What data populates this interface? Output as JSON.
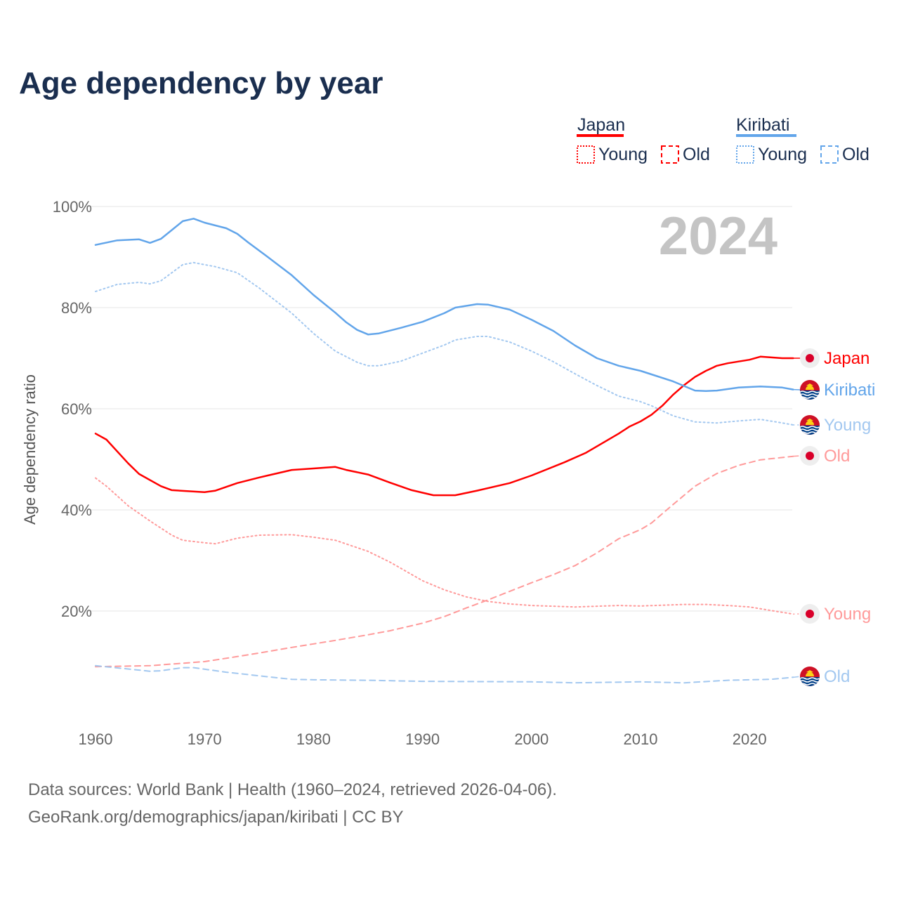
{
  "title": "Age dependency by year",
  "legend": {
    "groups": [
      {
        "name": "Japan",
        "color": "#ff0000",
        "items": [
          "Young",
          "Old"
        ]
      },
      {
        "name": "Kiribati",
        "color": "#62a5ea",
        "items": [
          "Young",
          "Old"
        ]
      }
    ]
  },
  "year_display": "2024",
  "footer": {
    "line1": "Data sources: World Bank | Health (1960–2024, retrieved 2026-04-06).",
    "line2": "GeoRank.org/demographics/japan/kiribati | CC BY"
  },
  "chart_data": {
    "type": "line",
    "title": "Age dependency by year",
    "xlabel": "",
    "ylabel": "Age dependency ratio",
    "xlim": [
      1960,
      2024
    ],
    "ylim": [
      0,
      100
    ],
    "x_ticks": [
      "1960",
      "1970",
      "1980",
      "1990",
      "2000",
      "2010",
      "2020"
    ],
    "y_ticks": [
      "20%",
      "40%",
      "60%",
      "80%",
      "100%"
    ],
    "grid": true,
    "legend_position": "top-right",
    "series": [
      {
        "name": "Japan",
        "end_label": "Japan",
        "style": "solid",
        "color": "#ff0000",
        "country": "japan",
        "points": [
          [
            1960,
            55.1
          ],
          [
            1961,
            53.9
          ],
          [
            1963,
            49.2
          ],
          [
            1964,
            47.1
          ],
          [
            1966,
            44.7
          ],
          [
            1967,
            43.9
          ],
          [
            1970,
            43.5
          ],
          [
            1971,
            43.8
          ],
          [
            1973,
            45.3
          ],
          [
            1975,
            46.4
          ],
          [
            1978,
            47.9
          ],
          [
            1980,
            48.2
          ],
          [
            1982,
            48.5
          ],
          [
            1983,
            47.9
          ],
          [
            1985,
            47.0
          ],
          [
            1987,
            45.4
          ],
          [
            1989,
            43.9
          ],
          [
            1991,
            42.9
          ],
          [
            1993,
            42.9
          ],
          [
            1995,
            43.8
          ],
          [
            1998,
            45.3
          ],
          [
            2000,
            46.8
          ],
          [
            2003,
            49.4
          ],
          [
            2005,
            51.3
          ],
          [
            2008,
            55.1
          ],
          [
            2009,
            56.5
          ],
          [
            2010,
            57.5
          ],
          [
            2011,
            58.8
          ],
          [
            2012,
            60.6
          ],
          [
            2013,
            62.8
          ],
          [
            2014,
            64.7
          ],
          [
            2015,
            66.3
          ],
          [
            2016,
            67.5
          ],
          [
            2017,
            68.5
          ],
          [
            2018,
            69.0
          ],
          [
            2020,
            69.7
          ],
          [
            2021,
            70.3
          ],
          [
            2023,
            70.0
          ],
          [
            2024,
            70.0
          ]
        ]
      },
      {
        "name": "Kiribati",
        "end_label": "Kiribati",
        "style": "solid",
        "color": "#62a5ea",
        "country": "kiribati",
        "points": [
          [
            1960,
            92.4
          ],
          [
            1962,
            93.3
          ],
          [
            1964,
            93.5
          ],
          [
            1965,
            92.8
          ],
          [
            1966,
            93.6
          ],
          [
            1968,
            97.1
          ],
          [
            1969,
            97.6
          ],
          [
            1970,
            96.8
          ],
          [
            1972,
            95.7
          ],
          [
            1973,
            94.6
          ],
          [
            1974,
            92.9
          ],
          [
            1976,
            89.7
          ],
          [
            1978,
            86.4
          ],
          [
            1980,
            82.5
          ],
          [
            1982,
            79.0
          ],
          [
            1983,
            77.1
          ],
          [
            1984,
            75.6
          ],
          [
            1985,
            74.7
          ],
          [
            1986,
            74.9
          ],
          [
            1988,
            76.0
          ],
          [
            1990,
            77.2
          ],
          [
            1992,
            78.9
          ],
          [
            1993,
            80.0
          ],
          [
            1995,
            80.7
          ],
          [
            1996,
            80.6
          ],
          [
            1998,
            79.6
          ],
          [
            2000,
            77.6
          ],
          [
            2002,
            75.4
          ],
          [
            2004,
            72.5
          ],
          [
            2006,
            70.0
          ],
          [
            2008,
            68.5
          ],
          [
            2010,
            67.5
          ],
          [
            2011,
            66.8
          ],
          [
            2013,
            65.4
          ],
          [
            2015,
            63.6
          ],
          [
            2016,
            63.5
          ],
          [
            2017,
            63.6
          ],
          [
            2019,
            64.2
          ],
          [
            2021,
            64.4
          ],
          [
            2023,
            64.2
          ],
          [
            2024,
            63.8
          ]
        ]
      },
      {
        "name": "Kiribati Young",
        "end_label": "Young",
        "style": "dotted",
        "color": "#a3c8f0",
        "country": "kiribati",
        "points": [
          [
            1960,
            83.2
          ],
          [
            1962,
            84.6
          ],
          [
            1964,
            85.0
          ],
          [
            1965,
            84.7
          ],
          [
            1966,
            85.3
          ],
          [
            1968,
            88.5
          ],
          [
            1969,
            88.9
          ],
          [
            1971,
            88.1
          ],
          [
            1973,
            86.9
          ],
          [
            1975,
            83.9
          ],
          [
            1978,
            78.9
          ],
          [
            1980,
            74.9
          ],
          [
            1982,
            71.4
          ],
          [
            1984,
            69.2
          ],
          [
            1985,
            68.5
          ],
          [
            1986,
            68.5
          ],
          [
            1988,
            69.4
          ],
          [
            1990,
            71.0
          ],
          [
            1992,
            72.6
          ],
          [
            1993,
            73.6
          ],
          [
            1995,
            74.3
          ],
          [
            1996,
            74.3
          ],
          [
            1998,
            73.2
          ],
          [
            2000,
            71.4
          ],
          [
            2002,
            69.3
          ],
          [
            2004,
            66.9
          ],
          [
            2006,
            64.6
          ],
          [
            2008,
            62.5
          ],
          [
            2010,
            61.4
          ],
          [
            2011,
            60.6
          ],
          [
            2013,
            58.6
          ],
          [
            2015,
            57.4
          ],
          [
            2017,
            57.2
          ],
          [
            2019,
            57.6
          ],
          [
            2021,
            57.9
          ],
          [
            2023,
            57.2
          ],
          [
            2024,
            56.8
          ]
        ]
      },
      {
        "name": "Japan Old",
        "end_label": "Old",
        "style": "dashed",
        "color": "#ff9a9a",
        "country": "japan",
        "points": [
          [
            1960,
            9.0
          ],
          [
            1965,
            9.2
          ],
          [
            1970,
            10.0
          ],
          [
            1973,
            11.0
          ],
          [
            1975,
            11.7
          ],
          [
            1978,
            12.8
          ],
          [
            1980,
            13.5
          ],
          [
            1982,
            14.2
          ],
          [
            1985,
            15.3
          ],
          [
            1987,
            16.1
          ],
          [
            1990,
            17.6
          ],
          [
            1992,
            18.9
          ],
          [
            1994,
            20.6
          ],
          [
            1996,
            22.2
          ],
          [
            1998,
            23.9
          ],
          [
            2000,
            25.6
          ],
          [
            2002,
            27.2
          ],
          [
            2004,
            29.0
          ],
          [
            2006,
            31.5
          ],
          [
            2008,
            34.3
          ],
          [
            2010,
            36.1
          ],
          [
            2011,
            37.4
          ],
          [
            2013,
            41.1
          ],
          [
            2015,
            44.7
          ],
          [
            2017,
            47.2
          ],
          [
            2019,
            48.8
          ],
          [
            2021,
            49.9
          ],
          [
            2024,
            50.6
          ]
        ]
      },
      {
        "name": "Japan Young",
        "end_label": "Young",
        "style": "dotted",
        "color": "#ff9a9a",
        "country": "japan",
        "points": [
          [
            1960,
            46.3
          ],
          [
            1961,
            44.7
          ],
          [
            1963,
            40.8
          ],
          [
            1965,
            37.8
          ],
          [
            1967,
            35.0
          ],
          [
            1968,
            34.0
          ],
          [
            1970,
            33.5
          ],
          [
            1971,
            33.3
          ],
          [
            1973,
            34.4
          ],
          [
            1975,
            35.0
          ],
          [
            1978,
            35.1
          ],
          [
            1980,
            34.6
          ],
          [
            1982,
            34.0
          ],
          [
            1985,
            31.8
          ],
          [
            1987,
            29.7
          ],
          [
            1990,
            26.0
          ],
          [
            1992,
            24.2
          ],
          [
            1994,
            22.8
          ],
          [
            1996,
            21.9
          ],
          [
            1998,
            21.4
          ],
          [
            2000,
            21.1
          ],
          [
            2004,
            20.8
          ],
          [
            2008,
            21.1
          ],
          [
            2010,
            21.0
          ],
          [
            2014,
            21.3
          ],
          [
            2016,
            21.3
          ],
          [
            2018,
            21.1
          ],
          [
            2020,
            20.8
          ],
          [
            2022,
            20.1
          ],
          [
            2024,
            19.4
          ]
        ]
      },
      {
        "name": "Kiribati Old",
        "end_label": "Old",
        "style": "dashed",
        "color": "#a3c8f0",
        "country": "kiribati",
        "points": [
          [
            1960,
            9.2
          ],
          [
            1965,
            8.1
          ],
          [
            1966,
            8.2
          ],
          [
            1968,
            8.8
          ],
          [
            1969,
            8.8
          ],
          [
            1972,
            7.9
          ],
          [
            1975,
            7.2
          ],
          [
            1978,
            6.5
          ],
          [
            1980,
            6.4
          ],
          [
            1985,
            6.3
          ],
          [
            1990,
            6.1
          ],
          [
            2000,
            6.0
          ],
          [
            2004,
            5.8
          ],
          [
            2010,
            6.0
          ],
          [
            2014,
            5.8
          ],
          [
            2018,
            6.3
          ],
          [
            2022,
            6.5
          ],
          [
            2024,
            6.9
          ]
        ]
      }
    ]
  }
}
